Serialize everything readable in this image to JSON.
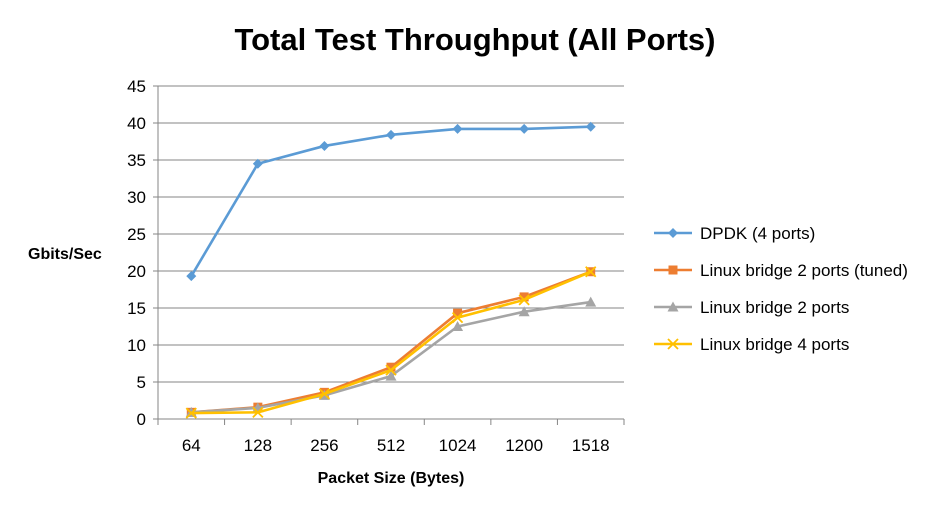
{
  "chart_data": {
    "type": "line",
    "title": "Total Test Throughput (All Ports)",
    "xlabel": "Packet Size (Bytes)",
    "ylabel": "Gbits/Sec",
    "categories": [
      "64",
      "128",
      "256",
      "512",
      "1024",
      "1200",
      "1518"
    ],
    "ylim": [
      0,
      45
    ],
    "yticks": [
      0,
      5,
      10,
      15,
      20,
      25,
      30,
      35,
      40,
      45
    ],
    "grid": true,
    "legend_position": "right",
    "series": [
      {
        "name": "DPDK (4 ports)",
        "color": "#5B9BD5",
        "marker": "diamond",
        "values": [
          19.3,
          34.5,
          36.9,
          38.4,
          39.2,
          39.2,
          39.5
        ]
      },
      {
        "name": "Linux bridge 2 ports (tuned)",
        "color": "#ED7D31",
        "marker": "square",
        "values": [
          0.9,
          1.6,
          3.6,
          7.0,
          14.3,
          16.5,
          19.9
        ]
      },
      {
        "name": "Linux bridge 2 ports",
        "color": "#A5A5A5",
        "marker": "triangle",
        "values": [
          0.9,
          1.5,
          3.2,
          5.8,
          12.5,
          14.5,
          15.8
        ]
      },
      {
        "name": "Linux bridge 4 ports",
        "color": "#FFC000",
        "marker": "x",
        "values": [
          0.8,
          0.9,
          3.4,
          6.6,
          13.7,
          16.1,
          19.9
        ]
      }
    ]
  }
}
